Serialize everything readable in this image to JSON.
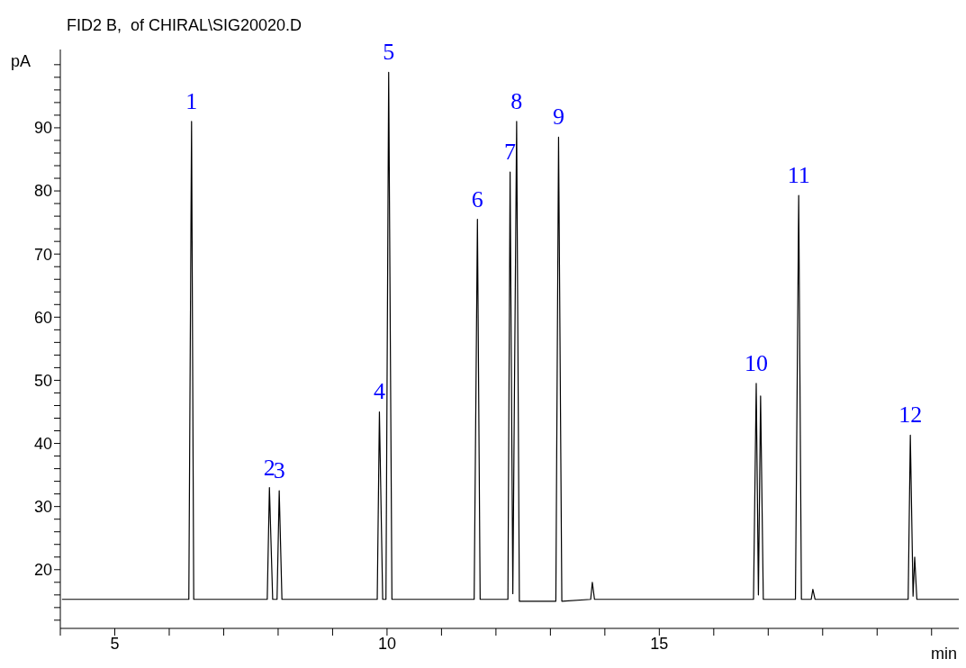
{
  "chart_data": {
    "type": "line",
    "title": "FID2 B,  of CHIRAL\\SIG20020.D",
    "xlabel": "min",
    "ylabel": "pA",
    "xlim": [
      4,
      20.5
    ],
    "ylim": [
      10.7,
      102.4
    ],
    "xticks": [
      {
        "value": 4,
        "label": null
      },
      5,
      {
        "value": 6,
        "label": null
      },
      {
        "value": 7,
        "label": null
      },
      {
        "value": 8,
        "label": null
      },
      {
        "value": 9,
        "label": null
      },
      10,
      {
        "value": 11,
        "label": null
      },
      {
        "value": 12,
        "label": null
      },
      {
        "value": 13,
        "label": null
      },
      {
        "value": 14,
        "label": null
      },
      15,
      {
        "value": 16,
        "label": null
      },
      {
        "value": 17,
        "label": null
      },
      {
        "value": 18,
        "label": null
      },
      {
        "value": 19,
        "label": null
      },
      {
        "value": 20,
        "label": null
      }
    ],
    "yticks": [
      {
        "value": 12,
        "label": null
      },
      {
        "value": 14,
        "label": null
      },
      {
        "value": 16,
        "label": null
      },
      {
        "value": 18,
        "label": null
      },
      20,
      {
        "value": 22,
        "label": null
      },
      {
        "value": 24,
        "label": null
      },
      {
        "value": 26,
        "label": null
      },
      {
        "value": 28,
        "label": null
      },
      30,
      {
        "value": 32,
        "label": null
      },
      {
        "value": 34,
        "label": null
      },
      {
        "value": 36,
        "label": null
      },
      {
        "value": 38,
        "label": null
      },
      40,
      {
        "value": 42,
        "label": null
      },
      {
        "value": 44,
        "label": null
      },
      {
        "value": 46,
        "label": null
      },
      {
        "value": 48,
        "label": null
      },
      50,
      {
        "value": 52,
        "label": null
      },
      {
        "value": 54,
        "label": null
      },
      {
        "value": 56,
        "label": null
      },
      {
        "value": 58,
        "label": null
      },
      60,
      {
        "value": 62,
        "label": null
      },
      {
        "value": 64,
        "label": null
      },
      {
        "value": 66,
        "label": null
      },
      {
        "value": 68,
        "label": null
      },
      70,
      {
        "value": 72,
        "label": null
      },
      {
        "value": 74,
        "label": null
      },
      {
        "value": 76,
        "label": null
      },
      {
        "value": 78,
        "label": null
      },
      80,
      {
        "value": 82,
        "label": null
      },
      {
        "value": 84,
        "label": null
      },
      {
        "value": 86,
        "label": null
      },
      {
        "value": 88,
        "label": null
      },
      90,
      {
        "value": 92,
        "label": null
      },
      {
        "value": 94,
        "label": null
      },
      {
        "value": 96,
        "label": null
      },
      {
        "value": 98,
        "label": null
      },
      {
        "value": 100,
        "label": null
      }
    ],
    "marker": "none",
    "line_style": "solid",
    "series": [
      {
        "color": "#000000",
        "x": [
          4.03,
          6.36,
          6.41,
          6.45,
          7.8,
          7.84,
          7.9,
          7.98,
          8.02,
          8.07,
          9.82,
          9.86,
          9.92,
          9.98,
          10.03,
          10.09,
          11.6,
          11.66,
          11.71,
          12.22,
          12.26,
          12.31,
          12.38,
          12.43,
          13.1,
          13.15,
          13.21,
          13.74,
          13.77,
          13.81,
          16.73,
          16.78,
          16.82,
          16.86,
          16.91,
          17.5,
          17.56,
          17.61,
          17.79,
          17.82,
          17.86,
          19.57,
          19.61,
          19.66,
          19.69,
          19.73,
          20.5
        ],
        "values": [
          15.3,
          15.3,
          91,
          15.3,
          15.3,
          33,
          15.3,
          15.3,
          32.5,
          15.3,
          15.3,
          45,
          15.3,
          15.3,
          98.8,
          15.3,
          15.3,
          75.5,
          15.3,
          15.3,
          83,
          16.2,
          91,
          15,
          15,
          88.5,
          15,
          15.3,
          18,
          15.3,
          15.3,
          49.5,
          16,
          47.5,
          15.3,
          15.3,
          79.3,
          15.3,
          15.3,
          16.9,
          15.3,
          15.3,
          41.3,
          15.8,
          22,
          15.3,
          15.3
        ]
      }
    ],
    "annotations": [
      {
        "text": "1",
        "x": 6.41,
        "y": 91
      },
      {
        "text": "2",
        "x": 7.84,
        "y": 33
      },
      {
        "text": "3",
        "x": 8.02,
        "y": 32.5
      },
      {
        "text": "4",
        "x": 9.86,
        "y": 45
      },
      {
        "text": "5",
        "x": 10.03,
        "y": 98.8
      },
      {
        "text": "6",
        "x": 11.66,
        "y": 75.5
      },
      {
        "text": "7",
        "x": 12.26,
        "y": 83
      },
      {
        "text": "8",
        "x": 12.38,
        "y": 91
      },
      {
        "text": "9",
        "x": 13.15,
        "y": 88.5
      },
      {
        "text": "10",
        "x": 16.78,
        "y": 49.5
      },
      {
        "text": "11",
        "x": 17.56,
        "y": 79.3
      },
      {
        "text": "12",
        "x": 19.61,
        "y": 41.3
      }
    ]
  }
}
